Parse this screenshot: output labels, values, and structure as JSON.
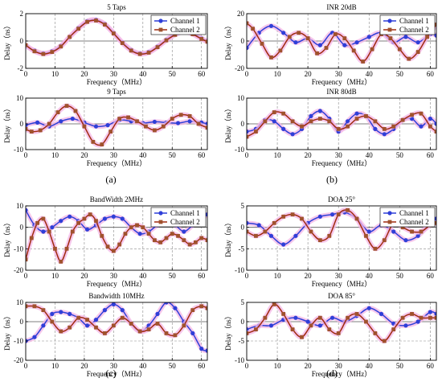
{
  "figure": {
    "panel_labels": [
      "(a)",
      "(b)",
      "(c)",
      "(d)"
    ],
    "colors": {
      "channel1_line": "#2f3fd8",
      "channel1_marker": "#2f3fd8",
      "channel2_line": "#a02a10",
      "channel2_marker": "#a0522d",
      "halo": "#f3b6e6",
      "grid": "#8a8a8a",
      "zero_line": "#555555",
      "axis": "#000000"
    }
  },
  "chart_data": [
    {
      "id": "a-top",
      "type": "line",
      "title": "5 Taps",
      "xlabel": "Frequency（MHz）",
      "ylabel": "Delay（ns）",
      "xlim": [
        0,
        62
      ],
      "ylim": [
        -2,
        2
      ],
      "xticks": [
        "0",
        "10",
        "20",
        "30",
        "40",
        "50",
        "60"
      ],
      "yticks": [
        "-2",
        "0",
        "2"
      ],
      "legend": [
        "Channel 1",
        "Channel 2"
      ],
      "legend_position": "top-right",
      "series": [
        {
          "name": "Channel 1",
          "marker": "circle",
          "x": [
            0,
            3,
            6,
            9,
            12,
            15,
            18,
            21,
            24,
            27,
            30,
            33,
            36,
            39,
            42,
            45,
            48,
            51,
            54,
            57,
            60,
            62
          ],
          "y": [
            -0.35,
            -0.7,
            -0.9,
            -0.75,
            -0.35,
            0.3,
            0.95,
            1.45,
            1.55,
            1.25,
            0.6,
            -0.1,
            -0.65,
            -0.9,
            -0.8,
            -0.4,
            0.1,
            0.5,
            0.7,
            0.55,
            0.2,
            0.0
          ]
        },
        {
          "name": "Channel 2",
          "marker": "square",
          "x": [
            0,
            3,
            6,
            9,
            12,
            15,
            18,
            21,
            24,
            27,
            30,
            33,
            36,
            39,
            42,
            45,
            48,
            51,
            54,
            57,
            60,
            62
          ],
          "y": [
            -0.3,
            -0.75,
            -0.95,
            -0.8,
            -0.4,
            0.3,
            0.9,
            1.4,
            1.5,
            1.2,
            0.55,
            -0.15,
            -0.7,
            -0.95,
            -0.85,
            -0.45,
            0.05,
            0.45,
            0.7,
            0.5,
            0.15,
            -0.05
          ]
        }
      ]
    },
    {
      "id": "a-bottom",
      "type": "line",
      "title": "9 Taps",
      "xlabel": "Frequency（MHz）",
      "ylabel": "Delay（ns）",
      "xlim": [
        0,
        62
      ],
      "ylim": [
        -10,
        10
      ],
      "xticks": [
        "0",
        "10",
        "20",
        "30",
        "40",
        "50",
        "60"
      ],
      "yticks": [
        "-10",
        "0",
        "10"
      ],
      "legend": [],
      "legend_position": "none",
      "series": [
        {
          "name": "Channel 1",
          "marker": "circle",
          "x": [
            0,
            4,
            8,
            12,
            16,
            20,
            24,
            28,
            32,
            36,
            40,
            44,
            48,
            52,
            56,
            60,
            62
          ],
          "y": [
            -0.5,
            0.5,
            -1,
            1,
            2,
            0.5,
            -1,
            -0.5,
            1.5,
            1,
            0.3,
            0.8,
            0.5,
            0.3,
            1,
            0.5,
            0
          ]
        },
        {
          "name": "Channel 2",
          "marker": "square",
          "x": [
            0,
            2,
            5,
            8,
            11,
            14,
            17,
            20,
            23,
            26,
            29,
            32,
            35,
            38,
            41,
            44,
            47,
            50,
            53,
            56,
            59,
            62
          ],
          "y": [
            -2,
            -3,
            -2.5,
            0,
            4.5,
            7,
            5,
            -1,
            -7,
            -8,
            -3,
            2,
            2.5,
            1,
            -1,
            -2.5,
            -1,
            2,
            3.5,
            3,
            0,
            -1.5
          ]
        }
      ]
    },
    {
      "id": "b-top",
      "type": "line",
      "title": "INR 20dB",
      "xlabel": "Frequency（MHz）",
      "ylabel": "Delay（ns）",
      "xlim": [
        0,
        62
      ],
      "ylim": [
        -20,
        20
      ],
      "xticks": [
        "0",
        "10",
        "20",
        "30",
        "40",
        "50",
        "60"
      ],
      "yticks": [
        "-20",
        "0",
        "20"
      ],
      "legend": [
        "Channel 1",
        "Channel 2"
      ],
      "legend_position": "top-right",
      "series": [
        {
          "name": "Channel 1",
          "marker": "circle",
          "x": [
            0,
            4,
            8,
            12,
            16,
            20,
            24,
            28,
            32,
            36,
            40,
            44,
            48,
            52,
            56,
            60,
            62
          ],
          "y": [
            -5,
            6,
            11,
            6,
            -1,
            2,
            -3,
            6,
            -3,
            -1,
            3,
            6,
            -1,
            3,
            -1,
            5,
            4
          ]
        },
        {
          "name": "Channel 2",
          "marker": "square",
          "x": [
            0,
            2,
            5,
            8,
            11,
            14,
            17,
            20,
            23,
            26,
            29,
            32,
            35,
            38,
            41,
            44,
            47,
            50,
            53,
            56,
            59,
            62
          ],
          "y": [
            13,
            9,
            -2,
            -12,
            -7,
            3,
            6,
            2,
            -9,
            -5,
            5,
            2,
            -7,
            -15,
            -6,
            5,
            2,
            -6,
            -13,
            -8,
            3,
            12
          ]
        }
      ]
    },
    {
      "id": "b-bottom",
      "type": "line",
      "title": "INR 80dB",
      "xlabel": "Frequency（MHz）",
      "ylabel": "Delay（ns）",
      "xlim": [
        0,
        62
      ],
      "ylim": [
        -10,
        10
      ],
      "xticks": [
        "0",
        "10",
        "20",
        "30",
        "40",
        "50",
        "60"
      ],
      "yticks": [
        "-10",
        "0",
        "10"
      ],
      "legend": [],
      "legend_position": "none",
      "series": [
        {
          "name": "Channel 1",
          "marker": "circle",
          "x": [
            0,
            3,
            6,
            9,
            12,
            15,
            18,
            21,
            24,
            27,
            30,
            33,
            36,
            39,
            42,
            45,
            48,
            51,
            54,
            57,
            60,
            62
          ],
          "y": [
            -3,
            -2,
            1.5,
            1,
            -2,
            -4,
            -2,
            3,
            5,
            2,
            -3,
            1,
            4,
            3,
            -2,
            -4,
            -2,
            1.5,
            2,
            -1,
            2,
            0
          ]
        },
        {
          "name": "Channel 2",
          "marker": "square",
          "x": [
            0,
            3,
            6,
            9,
            12,
            15,
            18,
            21,
            24,
            27,
            30,
            33,
            36,
            39,
            42,
            45,
            48,
            51,
            54,
            57,
            60,
            62
          ],
          "y": [
            -5,
            -3,
            1,
            4.5,
            4,
            1,
            -1,
            1,
            2,
            1,
            -2,
            -1,
            2,
            3,
            1,
            -2,
            -1,
            1.5,
            3.5,
            4,
            -1,
            -3
          ]
        }
      ]
    },
    {
      "id": "c-top",
      "type": "line",
      "title": "BandWidth 2MHz",
      "xlabel": "Frequency（MHz）",
      "ylabel": "Delay（ns）",
      "xlim": [
        0,
        62
      ],
      "ylim": [
        -20,
        10
      ],
      "xticks": [
        "0",
        "10",
        "20",
        "30",
        "40",
        "50",
        "60"
      ],
      "yticks": [
        "-20",
        "-10",
        "0",
        "10"
      ],
      "legend": [
        "Channel 1",
        "Channel 2"
      ],
      "legend_position": "top-right",
      "series": [
        {
          "name": "Channel 1",
          "marker": "circle",
          "x": [
            0,
            3,
            6,
            9,
            12,
            15,
            18,
            21,
            24,
            27,
            30,
            33,
            36,
            39,
            42,
            45,
            48,
            51,
            54,
            57,
            60,
            62
          ],
          "y": [
            8,
            1,
            -2,
            0,
            3,
            5,
            3,
            -1,
            1,
            4,
            5,
            4,
            0,
            -3,
            -2,
            1,
            2,
            1,
            -2,
            1,
            4,
            6
          ]
        },
        {
          "name": "Channel 2",
          "marker": "square",
          "x": [
            0,
            2,
            4,
            6,
            8,
            10,
            12,
            14,
            16,
            18,
            20,
            22,
            24,
            26,
            28,
            30,
            32,
            34,
            36,
            38,
            40,
            42,
            44,
            46,
            48,
            50,
            52,
            54,
            56,
            58,
            60,
            62
          ],
          "y": [
            -15,
            -5,
            2,
            4,
            -2,
            -10,
            -16,
            -10,
            -2,
            2,
            4,
            6,
            3,
            -4,
            -9,
            -11,
            -8,
            -3,
            0,
            1,
            0,
            -3,
            -6,
            -7,
            -5,
            -3,
            -4,
            -6,
            -8,
            -7,
            -5,
            -6
          ]
        }
      ]
    },
    {
      "id": "c-bottom",
      "type": "line",
      "title": "Bandwidth 10MHz",
      "xlabel": "Frequency（MHz）",
      "ylabel": "Delay（ns）",
      "xlim": [
        0,
        62
      ],
      "ylim": [
        -20,
        10
      ],
      "xticks": [
        "0",
        "10",
        "20",
        "30",
        "40",
        "50",
        "60"
      ],
      "yticks": [
        "-20",
        "-10",
        "0",
        "10"
      ],
      "legend": [],
      "legend_position": "none",
      "series": [
        {
          "name": "Channel 1",
          "marker": "circle",
          "x": [
            0,
            3,
            6,
            9,
            12,
            15,
            18,
            21,
            24,
            27,
            30,
            33,
            36,
            39,
            42,
            45,
            48,
            51,
            54,
            57,
            60,
            62
          ],
          "y": [
            -10,
            -8,
            -2,
            4,
            5,
            4,
            2,
            -2,
            1,
            6,
            9,
            6,
            -1,
            -5,
            -2,
            4,
            10,
            7,
            0,
            -6,
            -14,
            -15
          ]
        },
        {
          "name": "Channel 2",
          "marker": "square",
          "x": [
            0,
            3,
            6,
            9,
            12,
            15,
            18,
            21,
            24,
            27,
            30,
            33,
            36,
            39,
            42,
            45,
            48,
            51,
            54,
            57,
            60,
            62
          ],
          "y": [
            8,
            8,
            6,
            0,
            -5,
            -3,
            2,
            1,
            -3,
            -6,
            -2,
            2,
            -1,
            -5,
            -4,
            -1,
            -6,
            -7,
            -2,
            6,
            8,
            7
          ]
        }
      ]
    },
    {
      "id": "d-top",
      "type": "line",
      "title": "DOA 25°",
      "xlabel": "Frequency（MHz）",
      "ylabel": "Delay（ns）",
      "xlim": [
        0,
        62
      ],
      "ylim": [
        -10,
        5
      ],
      "xticks": [
        "0",
        "10",
        "20",
        "30",
        "40",
        "50",
        "60"
      ],
      "yticks": [
        "-10",
        "-5",
        "0",
        "5"
      ],
      "legend": [
        "Channel 1",
        "Channel 2"
      ],
      "legend_position": "top-right",
      "series": [
        {
          "name": "Channel 1",
          "marker": "circle",
          "x": [
            0,
            4,
            8,
            12,
            16,
            20,
            24,
            28,
            32,
            36,
            40,
            44,
            48,
            52,
            56,
            60,
            62
          ],
          "y": [
            1,
            0.5,
            -2,
            -4,
            -2,
            1,
            2.5,
            3,
            3.5,
            2,
            -1,
            0.5,
            -1,
            -3,
            -2,
            1,
            2
          ]
        },
        {
          "name": "Channel 2",
          "marker": "square",
          "x": [
            0,
            3,
            6,
            9,
            12,
            15,
            18,
            21,
            24,
            27,
            30,
            33,
            36,
            39,
            42,
            45,
            48,
            51,
            54,
            57,
            60,
            62
          ],
          "y": [
            -1,
            -2,
            -1,
            1,
            2.5,
            3,
            2,
            -1,
            -3,
            -2,
            3,
            4,
            2,
            -2,
            -5,
            -3,
            1,
            0,
            -1,
            -1,
            0.5,
            1
          ]
        }
      ]
    },
    {
      "id": "d-bottom",
      "type": "line",
      "title": "DOA 85°",
      "xlabel": "Frequency（MHz）",
      "ylabel": "Delay（ns）",
      "xlim": [
        0,
        62
      ],
      "ylim": [
        -10,
        5
      ],
      "xticks": [
        "0",
        "10",
        "20",
        "30",
        "40",
        "50",
        "60"
      ],
      "yticks": [
        "-10",
        "-5",
        "0",
        "5"
      ],
      "legend": [],
      "legend_position": "none",
      "series": [
        {
          "name": "Channel 1",
          "marker": "circle",
          "x": [
            0,
            4,
            8,
            12,
            16,
            20,
            24,
            28,
            32,
            36,
            40,
            44,
            48,
            52,
            56,
            60,
            62
          ],
          "y": [
            -2,
            -1,
            -1,
            0.5,
            1,
            0,
            -1,
            1,
            0,
            1.5,
            3.5,
            2,
            -0.5,
            -1,
            0,
            2.5,
            2
          ]
        },
        {
          "name": "Channel 2",
          "marker": "square",
          "x": [
            0,
            3,
            6,
            9,
            12,
            15,
            18,
            21,
            24,
            27,
            30,
            33,
            36,
            39,
            42,
            45,
            48,
            51,
            54,
            57,
            60,
            62
          ],
          "y": [
            -3,
            -2,
            1,
            4.5,
            2,
            -2,
            -4,
            -1,
            1,
            -2,
            -3,
            1,
            2,
            0,
            -3,
            -5,
            -2,
            1,
            2,
            1,
            1,
            1
          ]
        }
      ]
    }
  ]
}
